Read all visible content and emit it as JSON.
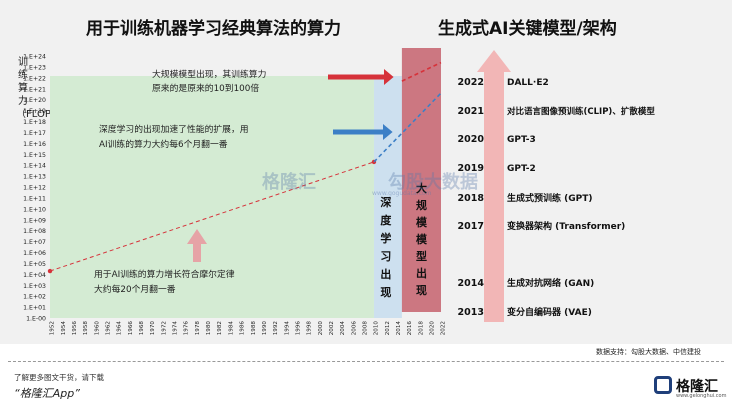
{
  "title_left": "用于训练机器学习经典算法的算力",
  "title_right": "生成式AI关键模型/架构",
  "source": "数据支持：勾股大数据、中信建投",
  "footer_line1": "了解更多图文干货，请下载",
  "footer_line2": "“格隆汇App”",
  "logo_text": "格隆汇",
  "logo_sub": "www.gelonghui.com",
  "watermark_left": "格隆汇",
  "watermark_right": "勾股大数据",
  "watermark_url": "www.gogudata.com",
  "colors": {
    "green_region": "#d4ebd3",
    "blue_region": "#cde0ef",
    "red_region": "#c9707a",
    "red_arrow": "#d6323a",
    "blue_arrow": "#3c7fc6",
    "pink_arrow": "#e6a3a6",
    "timeline_arrow": "#f2b6b6"
  },
  "chart_data": {
    "type": "line",
    "ylabel": "训练算力（FLOPs）",
    "y_scale": "log",
    "y_ticks": [
      "1.E-00",
      "1.E+01",
      "1.E+02",
      "1.E+03",
      "1.E+04",
      "1.E+05",
      "1.E+06",
      "1.E+07",
      "1.E+08",
      "1.E+09",
      "1.E+10",
      "1.E+11",
      "1.E+12",
      "1.E+13",
      "1.E+14",
      "1.E+15",
      "1.E+16",
      "1.E+17",
      "1.E+18",
      "1.E+19",
      "1.E+20",
      "1.E+21",
      "1.E+22",
      "1.E+23",
      "1.E+24"
    ],
    "x_ticks": [
      "1952",
      "1954",
      "1956",
      "1958",
      "1960",
      "1962",
      "1964",
      "1966",
      "1968",
      "1970",
      "1972",
      "1974",
      "1976",
      "1978",
      "1980",
      "1982",
      "1984",
      "1986",
      "1988",
      "1990",
      "1992",
      "1994",
      "1996",
      "1998",
      "2000",
      "2002",
      "2004",
      "2006",
      "2008",
      "2010",
      "2012",
      "2014",
      "2016",
      "2018",
      "2020",
      "2022"
    ],
    "xlim": [
      1952,
      2022
    ],
    "ylim_exp": [
      0,
      24
    ],
    "regions": [
      {
        "name": "pre-deep-learning",
        "x": [
          1952,
          2010
        ]
      },
      {
        "name": "深度学习出现",
        "x": [
          2010,
          2015
        ]
      },
      {
        "name": "大规模模型出现",
        "x": [
          2015,
          2022
        ]
      }
    ],
    "series": [
      {
        "style": "red-dashed",
        "x": [
          1952,
          2010
        ],
        "y_exp": [
          4.3,
          14.3
        ]
      },
      {
        "style": "blue-dashed",
        "x": [
          2010,
          2022
        ],
        "y_exp": [
          14.3,
          20.6
        ]
      },
      {
        "style": "red-dashed",
        "x": [
          2015,
          2022
        ],
        "y_exp": [
          21.7,
          23.4
        ]
      }
    ],
    "region_labels": {
      "deep": "深度学习出现",
      "large": "大规模模型出现"
    },
    "annotations": {
      "moore": "用于AI训练的算力增长符合摩尔定律，大约每20个月翻一番",
      "deep": "深度学习的出现加速了性能的扩展，用于AI训练的算力大约每6个月翻一番",
      "large": "大规模模型出现，其训练算力是原来的是原来的10到100倍"
    }
  },
  "timeline": [
    {
      "year": "2022",
      "model": "DALL·E2"
    },
    {
      "year": "2021",
      "model": "对比语言图像预训练(CLIP)、扩散模型"
    },
    {
      "year": "2020",
      "model": "GPT-3"
    },
    {
      "year": "2019",
      "model": "GPT-2"
    },
    {
      "year": "2018",
      "model": "生成式预训练 (GPT)"
    },
    {
      "year": "2017",
      "model": "变换器架构 (Transformer)"
    },
    {
      "year": "2014",
      "model": "生成对抗网络 (GAN)"
    },
    {
      "year": "2013",
      "model": "变分自编码器 (VAE)"
    }
  ]
}
